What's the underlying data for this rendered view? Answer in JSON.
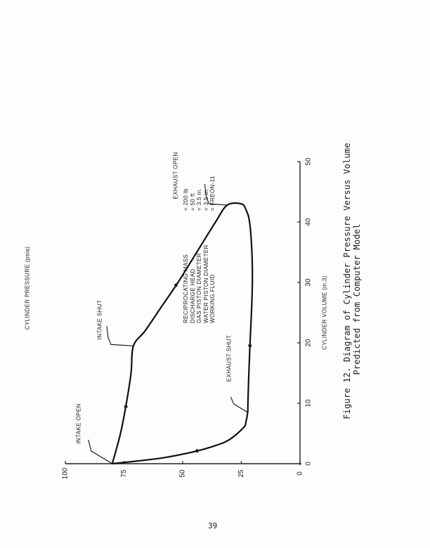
{
  "page_number": "39",
  "figure": {
    "caption_line1": "Figure 12.  Diagram of Cylinder Pressure Versus Volume",
    "caption_line2": "Predicted from Computer Model"
  },
  "parameters": [
    {
      "name": "RECIPROCATING MASS",
      "value": "= 200 lb"
    },
    {
      "name": "DISCHARGE HEAD",
      "value": "= 50 ft"
    },
    {
      "name": "GAS PISTON DIAMETER",
      "value": "= 3.5 in."
    },
    {
      "name": "WATER PISTON DIAMETER",
      "value": "= 3.5 in."
    },
    {
      "name": "WORKING FLUID",
      "value": "= FREON-11"
    }
  ],
  "chart_data": {
    "type": "line",
    "title": "",
    "xlabel": "CYLINDER VOLUME (in.3)",
    "ylabel": "CYLINDER PRESSURE (psia)",
    "xlim": [
      0,
      50
    ],
    "ylim": [
      0,
      100
    ],
    "xticks": [
      "0",
      "10",
      "20",
      "30",
      "40",
      "50"
    ],
    "yticks": [
      "0",
      "25",
      "50",
      "75",
      "100"
    ],
    "grid": false,
    "series": [
      {
        "points": [
          [
            0,
            80
          ],
          [
            5,
            76.5
          ],
          [
            10,
            74
          ],
          [
            15,
            72
          ],
          [
            19.5,
            71
          ],
          [
            22,
            66
          ],
          [
            26,
            59
          ],
          [
            30,
            52
          ],
          [
            35,
            44
          ],
          [
            40,
            36
          ],
          [
            42.8,
            31
          ],
          [
            43,
            25
          ],
          [
            42,
            23
          ],
          [
            40,
            21.5
          ],
          [
            35,
            20.5
          ],
          [
            30,
            20.3
          ],
          [
            25,
            20.7
          ],
          [
            20,
            21.3
          ],
          [
            15,
            21.8
          ],
          [
            10,
            22.2
          ],
          [
            8.5,
            22.3
          ],
          [
            7,
            23
          ],
          [
            6,
            24
          ],
          [
            4,
            30
          ],
          [
            3,
            36
          ],
          [
            2,
            45
          ],
          [
            1,
            58
          ],
          [
            0.5,
            68
          ],
          [
            0,
            80
          ]
        ]
      }
    ],
    "annotations": [
      {
        "text": "INTAKE OPEN",
        "x": 0,
        "y": 80
      },
      {
        "text": "INTAKE SHUT",
        "x": 19.5,
        "y": 71
      },
      {
        "text": "EXHAUST OPEN",
        "x": 42.8,
        "y": 31
      },
      {
        "text": "EXHAUST SHUT",
        "x": 8.5,
        "y": 22.3
      }
    ]
  }
}
